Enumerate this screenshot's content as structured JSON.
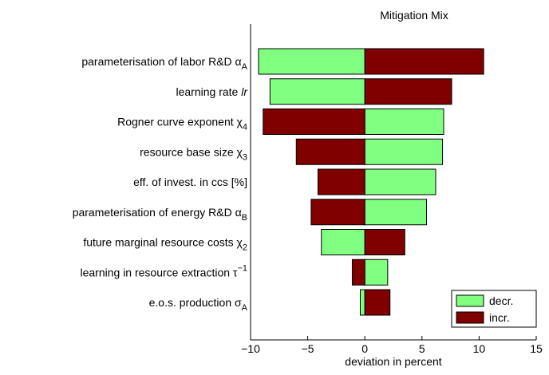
{
  "chart_data": {
    "type": "tornado",
    "title": "Mitigation Mix",
    "xlabel": "deviation in percent",
    "categories": [
      "parameterisation of labor R&D α",
      "learning rate ",
      "Rogner curve exponent χ",
      "resource base size χ",
      "eff. of invest. in ccs [%]",
      "parameterisation of energy R&D α",
      "future marginal resource costs χ",
      "learning in resource extraction τ",
      "e.o.s. production σ"
    ],
    "category_italics": [
      null,
      "lr",
      null,
      null,
      null,
      null,
      null,
      null,
      null
    ],
    "category_subscripts": [
      "A",
      null,
      "4",
      "3",
      null,
      "B",
      "2",
      null,
      "A"
    ],
    "category_superscripts": [
      null,
      null,
      null,
      null,
      null,
      null,
      null,
      "−1",
      null
    ],
    "series": [
      {
        "name": "decr.",
        "color": "#80ff80",
        "values": [
          -9.3,
          -8.3,
          6.9,
          6.8,
          6.2,
          5.4,
          -3.8,
          2.0,
          -0.4
        ]
      },
      {
        "name": "incr.",
        "color": "#800000",
        "values": [
          10.4,
          7.6,
          -8.9,
          -6.0,
          -4.1,
          -4.7,
          3.5,
          -1.1,
          2.2
        ]
      }
    ],
    "xlim": [
      -10,
      15
    ],
    "xticks": [
      {
        "value": -10,
        "label": "−10"
      },
      {
        "value": -5,
        "label": "−5"
      },
      0,
      5,
      10,
      15
    ],
    "legend": "lower right"
  }
}
